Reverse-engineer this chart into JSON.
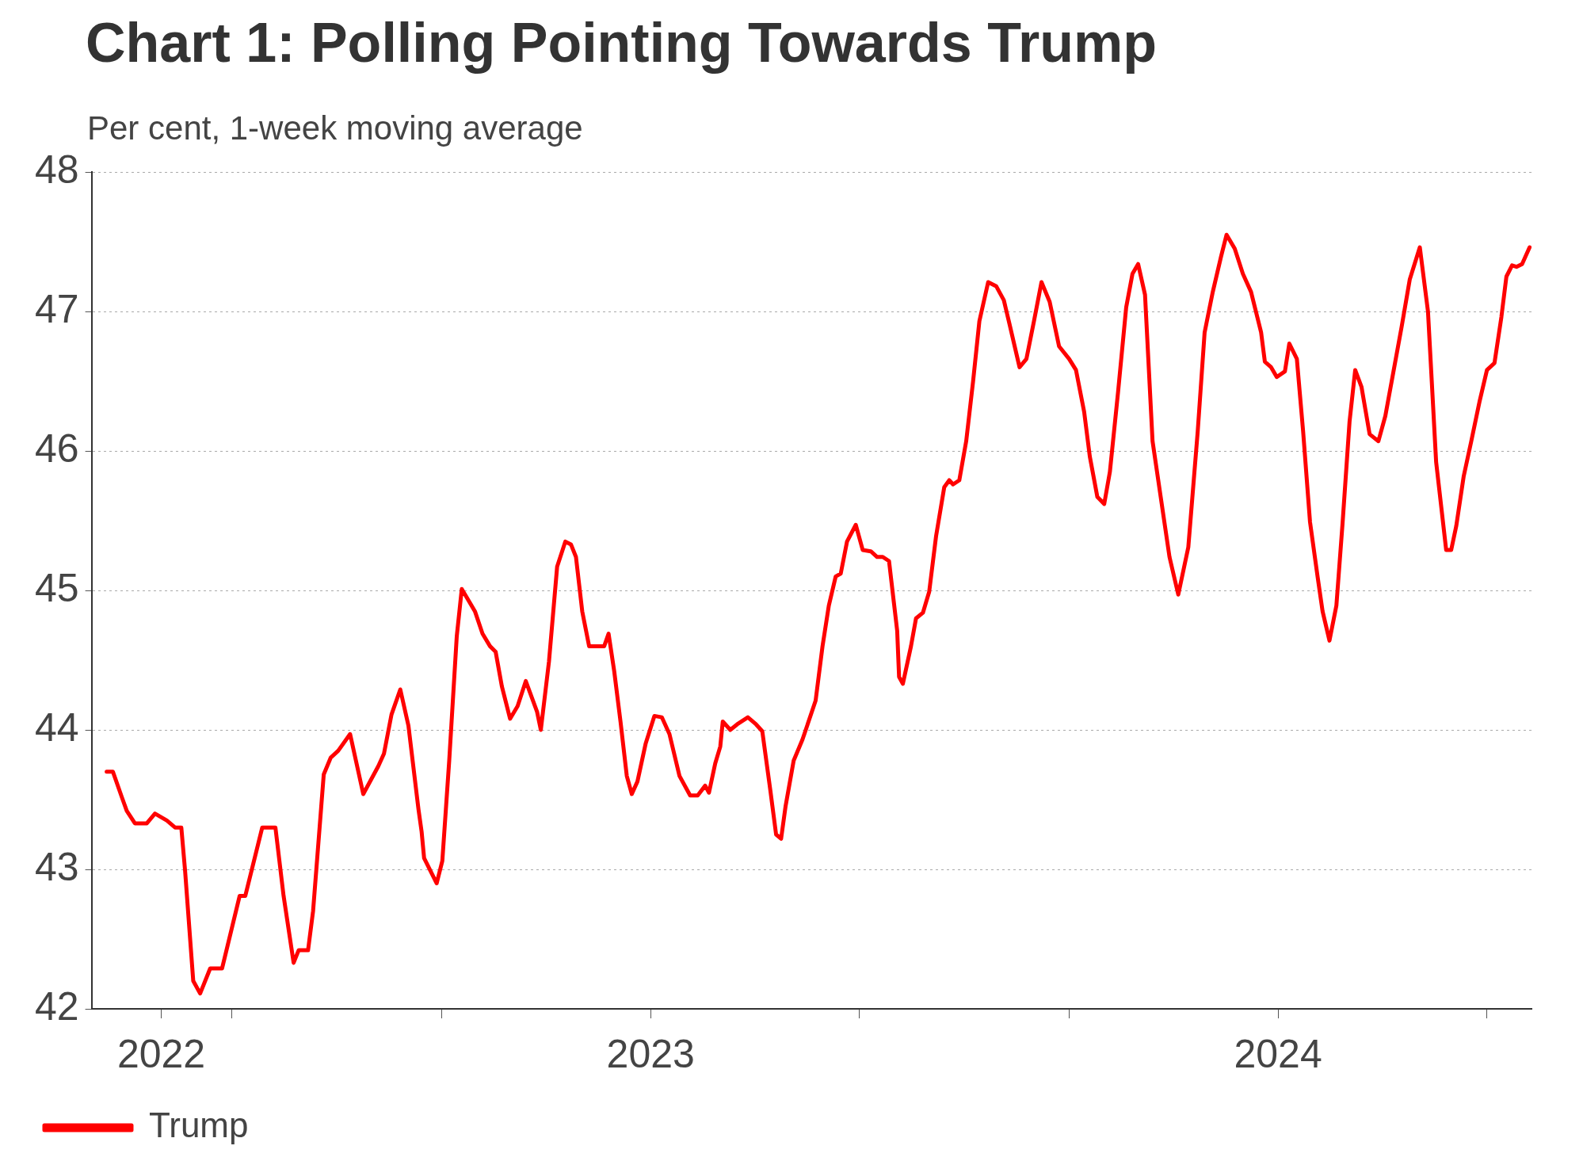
{
  "chart_data": {
    "type": "line",
    "title": "Chart 1: Polling Pointing Towards Trump",
    "subtitle": "Per cent, 1-week moving average",
    "xlim": [
      2022.109,
      2024.404
    ],
    "xticks": [
      {
        "value": 2022.22,
        "label": "2022"
      },
      {
        "value": 2022.333,
        "label": null
      },
      {
        "value": 2022.667,
        "label": null
      },
      {
        "value": 2023,
        "label": "2023"
      },
      {
        "value": 2023.333,
        "label": null
      },
      {
        "value": 2023.667,
        "label": null
      },
      {
        "value": 2024,
        "label": "2024"
      },
      {
        "value": 2024.333,
        "label": null
      }
    ],
    "ylim": [
      42,
      48
    ],
    "yticks": [
      42,
      43,
      44,
      45,
      46,
      47,
      48
    ],
    "grid": "y",
    "legend": "bottom left",
    "marker": "none",
    "line_style": "solid",
    "series": [
      {
        "name": "Trump",
        "color": "#ff0000",
        "x": [
          2022.133,
          2022.143,
          2022.157,
          2022.165,
          2022.178,
          2022.197,
          2022.21,
          2022.229,
          2022.242,
          2022.252,
          2022.258,
          2022.271,
          2022.282,
          2022.298,
          2022.317,
          2022.345,
          2022.354,
          2022.381,
          2022.402,
          2022.415,
          2022.431,
          2022.439,
          2022.454,
          2022.462,
          2022.479,
          2022.49,
          2022.502,
          2022.521,
          2022.542,
          2022.566,
          2022.575,
          2022.587,
          2022.601,
          2022.614,
          2022.63,
          2022.635,
          2022.639,
          2022.659,
          2022.668,
          2022.679,
          2022.691,
          2022.699,
          2022.72,
          2022.732,
          2022.744,
          2022.753,
          2022.763,
          2022.776,
          2022.788,
          2022.801,
          2022.819,
          2022.825,
          2022.838,
          2022.851,
          2022.864,
          2022.873,
          2022.881,
          2022.891,
          2022.902,
          2022.926,
          2022.933,
          2022.942,
          2022.952,
          2022.962,
          2022.97,
          2022.979,
          2022.992,
          2023.006,
          2023.018,
          2023.03,
          2023.046,
          2023.063,
          2023.075,
          2023.087,
          2023.093,
          2023.103,
          2023.111,
          2023.115,
          2023.127,
          2023.138,
          2023.155,
          2023.168,
          2023.178,
          2023.191,
          2023.2,
          2023.208,
          2023.215,
          2023.228,
          2023.242,
          2023.263,
          2023.274,
          2023.284,
          2023.295,
          2023.303,
          2023.313,
          2023.327,
          2023.338,
          2023.351,
          2023.361,
          2023.37,
          2023.38,
          2023.393,
          2023.396,
          2023.402,
          2023.415,
          2023.423,
          2023.434,
          2023.444,
          2023.455,
          2023.468,
          2023.476,
          2023.482,
          2023.492,
          2023.503,
          2023.514,
          2023.524,
          2023.538,
          2023.551,
          2023.563,
          2023.572,
          2023.588,
          2023.599,
          2023.611,
          2023.623,
          2023.636,
          2023.651,
          2023.667,
          2023.678,
          2023.691,
          2023.7,
          2023.712,
          2023.723,
          2023.732,
          2023.745,
          2023.758,
          2023.768,
          2023.777,
          2023.788,
          2023.8,
          2023.813,
          2023.827,
          2023.841,
          2023.857,
          2023.872,
          2023.883,
          2023.896,
          2023.909,
          2023.918,
          2023.931,
          2023.944,
          2023.957,
          2023.973,
          2023.979,
          2023.989,
          2023.998,
          2024.011,
          2024.018,
          2024.03,
          2024.04,
          2024.051,
          2024.063,
          2024.071,
          2024.082,
          2024.093,
          2024.103,
          2024.114,
          2024.123,
          2024.133,
          2024.146,
          2024.16,
          2024.171,
          2024.184,
          2024.197,
          2024.21,
          2024.226,
          2024.239,
          2024.252,
          2024.268,
          2024.276,
          2024.284,
          2024.296,
          2024.308,
          2024.321,
          2024.333,
          2024.345,
          2024.356,
          2024.364,
          2024.373,
          2024.38,
          2024.389,
          2024.401
        ],
        "values": [
          43.7,
          43.7,
          43.52,
          43.42,
          43.33,
          43.33,
          43.4,
          43.35,
          43.3,
          43.3,
          42.99,
          42.2,
          42.11,
          42.29,
          42.29,
          42.81,
          42.81,
          43.3,
          43.3,
          42.81,
          42.33,
          42.42,
          42.42,
          42.7,
          43.68,
          43.8,
          43.85,
          43.97,
          43.54,
          43.74,
          43.83,
          44.11,
          44.29,
          44.03,
          43.43,
          43.27,
          43.08,
          42.9,
          43.06,
          43.78,
          44.67,
          45.01,
          44.85,
          44.69,
          44.6,
          44.56,
          44.31,
          44.08,
          44.17,
          44.35,
          44.13,
          44.0,
          44.49,
          45.17,
          45.35,
          45.33,
          45.24,
          44.85,
          44.6,
          44.6,
          44.69,
          44.42,
          44.06,
          43.67,
          43.54,
          43.63,
          43.9,
          44.1,
          44.09,
          43.97,
          43.67,
          43.53,
          43.53,
          43.6,
          43.55,
          43.76,
          43.88,
          44.06,
          44.0,
          44.04,
          44.09,
          44.04,
          43.99,
          43.56,
          43.25,
          43.22,
          43.45,
          43.78,
          43.93,
          44.21,
          44.6,
          44.89,
          45.1,
          45.12,
          45.35,
          45.47,
          45.29,
          45.28,
          45.24,
          45.24,
          45.21,
          44.71,
          44.38,
          44.33,
          44.6,
          44.8,
          44.84,
          44.99,
          45.39,
          45.74,
          45.79,
          45.76,
          45.79,
          46.07,
          46.5,
          46.93,
          47.21,
          47.18,
          47.08,
          46.91,
          46.6,
          46.66,
          46.93,
          47.21,
          47.07,
          46.75,
          46.66,
          46.58,
          46.28,
          45.96,
          45.67,
          45.62,
          45.85,
          46.42,
          47.03,
          47.27,
          47.34,
          47.12,
          46.07,
          45.67,
          45.24,
          44.97,
          45.31,
          46.14,
          46.85,
          47.14,
          47.39,
          47.55,
          47.45,
          47.27,
          47.14,
          46.85,
          46.64,
          46.6,
          46.53,
          46.57,
          46.77,
          46.66,
          46.14,
          45.49,
          45.1,
          44.85,
          44.64,
          44.89,
          45.49,
          46.21,
          46.58,
          46.46,
          46.12,
          46.07,
          46.25,
          46.57,
          46.89,
          47.23,
          47.46,
          47.0,
          45.92,
          45.29,
          45.29,
          45.46,
          45.82,
          46.07,
          46.35,
          46.58,
          46.63,
          46.96,
          47.25,
          47.33,
          47.32,
          47.34,
          47.46
        ]
      }
    ]
  }
}
